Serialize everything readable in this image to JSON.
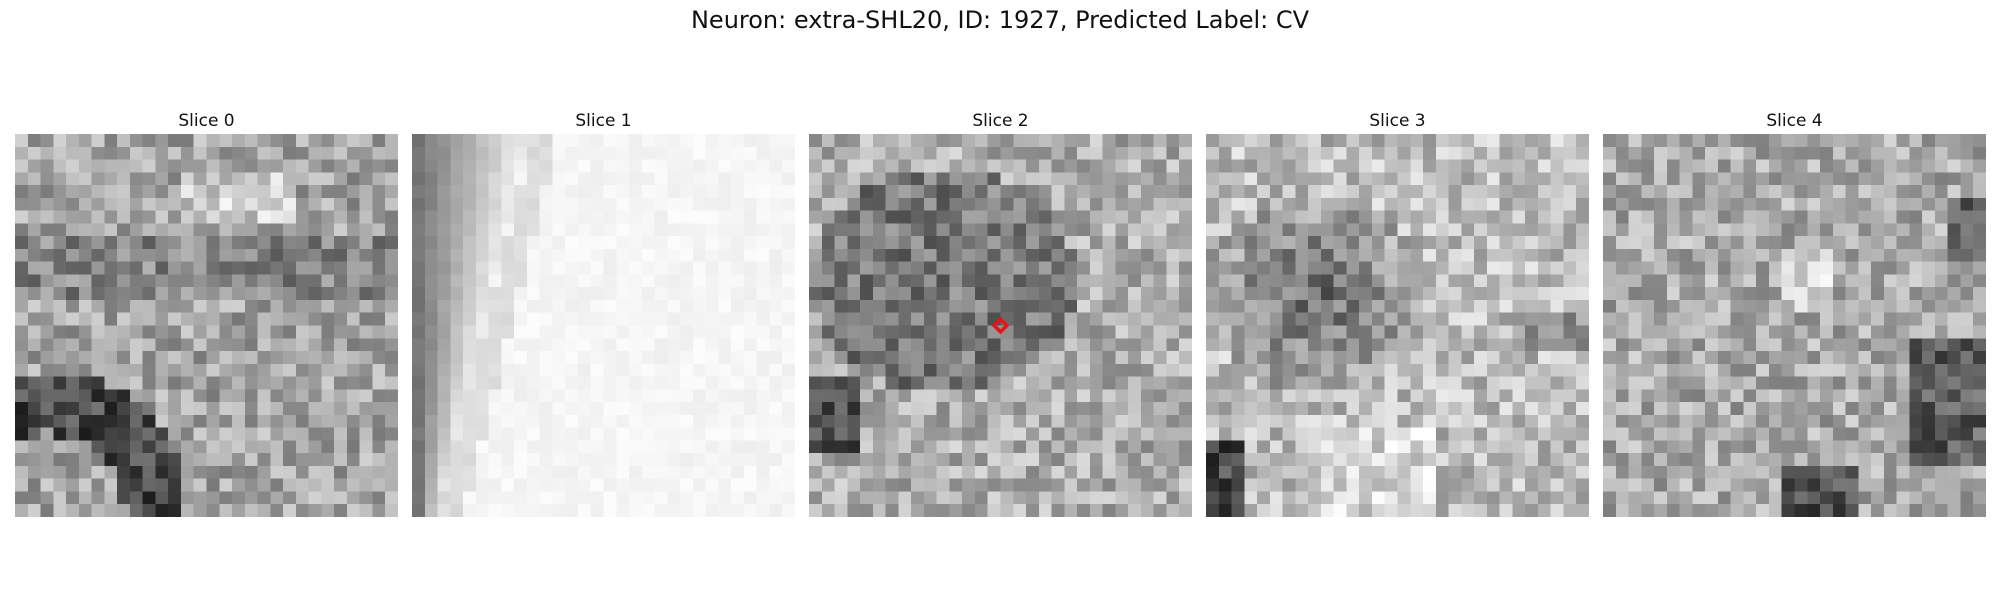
{
  "figure": {
    "title": "Neuron: extra-SHL20, ID: 1927, Predicted Label: CV"
  },
  "slices": [
    {
      "title": "Slice 0",
      "icon": "grayscale-noise-slice",
      "base_gray": 165,
      "dark_regions": "bottom-left arc",
      "marker": false
    },
    {
      "title": "Slice 1",
      "icon": "grayscale-bright-slice",
      "base_gray": 245,
      "dark_regions": "left edge",
      "marker": false
    },
    {
      "title": "Slice 2",
      "icon": "grayscale-cell-slice",
      "base_gray": 175,
      "dark_regions": "upper-left blob",
      "marker": true
    },
    {
      "title": "Slice 3",
      "icon": "grayscale-cell-slice",
      "base_gray": 190,
      "dark_regions": "upper-left blob",
      "marker": false
    },
    {
      "title": "Slice 4",
      "icon": "grayscale-noise-slice",
      "base_gray": 170,
      "dark_regions": "right and bottom",
      "marker": false
    }
  ],
  "marker": {
    "color": "#e0161b",
    "icon": "target-marker-icon"
  }
}
